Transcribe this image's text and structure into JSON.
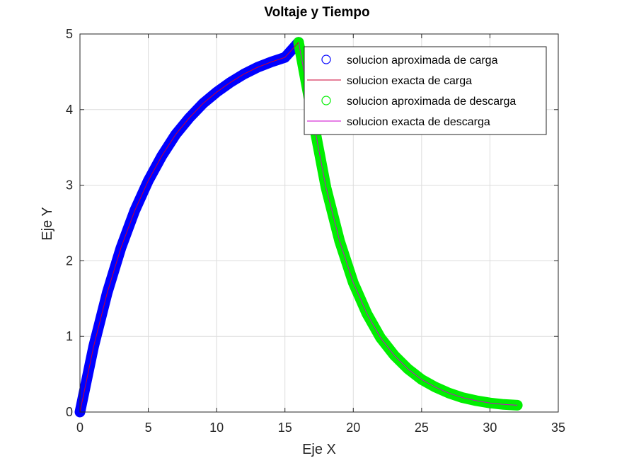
{
  "chart_data": {
    "type": "line",
    "title": "Voltaje y Tiempo",
    "xlabel": "Eje X",
    "ylabel": "Eje Y",
    "xlim": [
      0,
      35
    ],
    "ylim": [
      0,
      5
    ],
    "xticks": [
      "0",
      "5",
      "10",
      "15",
      "20",
      "25",
      "30",
      "35"
    ],
    "yticks": [
      "0",
      "1",
      "2",
      "3",
      "4",
      "5"
    ],
    "grid": true,
    "legend_position": "top-right",
    "series": [
      {
        "name": "solucion aproximada de carga",
        "style": "markers",
        "color": "#0000ff",
        "x": [
          0,
          1,
          2,
          3,
          4,
          5,
          6,
          7,
          8,
          9,
          10,
          11,
          12,
          13,
          14,
          15,
          16
        ],
        "y": [
          0,
          0.865,
          1.58,
          2.17,
          2.66,
          3.06,
          3.39,
          3.67,
          3.89,
          4.08,
          4.23,
          4.36,
          4.47,
          4.56,
          4.63,
          4.69,
          4.89
        ]
      },
      {
        "name": "solucion exacta de carga",
        "style": "line",
        "color": "#cc0033",
        "x": [
          0,
          1,
          2,
          3,
          4,
          5,
          6,
          7,
          8,
          9,
          10,
          11,
          12,
          13,
          14,
          15,
          16
        ],
        "y": [
          0,
          0.865,
          1.58,
          2.17,
          2.66,
          3.06,
          3.39,
          3.67,
          3.89,
          4.08,
          4.23,
          4.36,
          4.47,
          4.56,
          4.63,
          4.69,
          4.89
        ]
      },
      {
        "name": "solucion aproximada de descarga",
        "style": "markers",
        "color": "#00ee00",
        "x": [
          16,
          17,
          18,
          19,
          20,
          21,
          22,
          23,
          24,
          25,
          26,
          27,
          28,
          29,
          30,
          31,
          32
        ],
        "y": [
          4.89,
          3.92,
          2.97,
          2.26,
          1.71,
          1.3,
          0.98,
          0.75,
          0.57,
          0.43,
          0.33,
          0.25,
          0.19,
          0.15,
          0.12,
          0.1,
          0.09
        ]
      },
      {
        "name": "solucion exacta de descarga",
        "style": "line",
        "color": "#cc00cc",
        "x": [
          16,
          17,
          18,
          19,
          20,
          21,
          22,
          23,
          24,
          25,
          26,
          27,
          28,
          29,
          30,
          31,
          32
        ],
        "y": [
          4.89,
          3.92,
          2.97,
          2.26,
          1.71,
          1.3,
          0.98,
          0.75,
          0.57,
          0.43,
          0.33,
          0.25,
          0.19,
          0.15,
          0.12,
          0.1,
          0.09
        ]
      }
    ]
  }
}
